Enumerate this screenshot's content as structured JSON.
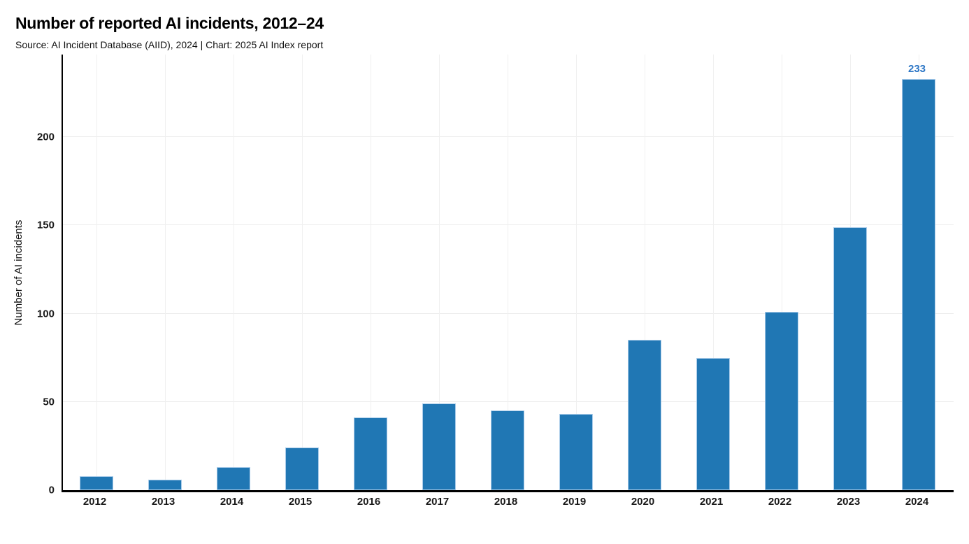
{
  "page": {
    "title": "Number of reported AI incidents, 2012–24",
    "subtitle": "Source: AI Incident Database (AIID), 2024 | Chart: 2025 AI Index report"
  },
  "chart_data": {
    "type": "bar",
    "title": "Number of reported AI incidents, 2012–24",
    "subtitle": "Source: AI Incident Database (AIID), 2024 | Chart: 2025 AI Index report",
    "categories": [
      "2012",
      "2013",
      "2014",
      "2015",
      "2016",
      "2017",
      "2018",
      "2019",
      "2020",
      "2021",
      "2022",
      "2023",
      "2024"
    ],
    "values": [
      8,
      6,
      13,
      24,
      41,
      49,
      45,
      43,
      85,
      75,
      101,
      149,
      233
    ],
    "xlabel": "",
    "ylabel": "Number of AI incidents",
    "yticks": [
      0,
      50,
      100,
      150,
      200
    ],
    "ylim": [
      0,
      247
    ],
    "grid": true,
    "legend": "none",
    "annotations": [
      {
        "category": "2024",
        "text": "233",
        "color": "#2e77c6"
      }
    ],
    "colors": {
      "bar_fill": "#2077b4",
      "bar_edge": "#a9cbe9",
      "hgrid": "#ebebeb",
      "vgrid": "#f0f0f0",
      "axis": "#000000",
      "tick_text": "#1a1a1a"
    }
  }
}
